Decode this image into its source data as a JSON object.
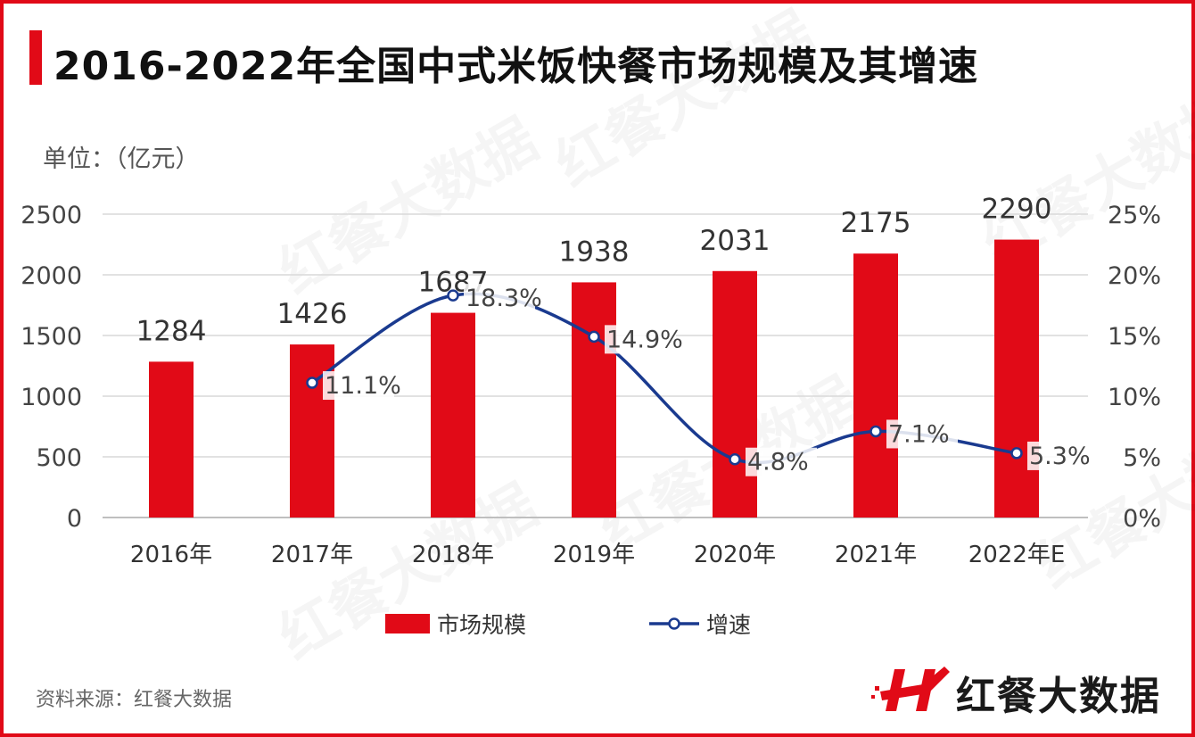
{
  "title": "2016-2022年全国中式米饭快餐市场规模及其增速",
  "unit_label": "单位：（亿元）",
  "source": "资料来源：红餐大数据",
  "logo_text": "红餐大数据",
  "watermark_text": "红餐大数据",
  "colors": {
    "bar": "#e10a17",
    "line": "#1a3a8f",
    "accent": "#e10a17"
  },
  "chart_data": {
    "type": "bar+line",
    "categories": [
      "2016年",
      "2017年",
      "2018年",
      "2019年",
      "2020年",
      "2021年",
      "2022年E"
    ],
    "series": [
      {
        "name": "市场规模",
        "type": "bar",
        "axis": "left",
        "values": [
          1284,
          1426,
          1687,
          1938,
          2031,
          2175,
          2290
        ],
        "labels": [
          "1284",
          "1426",
          "1687",
          "1938",
          "2031",
          "2175",
          "2290"
        ]
      },
      {
        "name": "增速",
        "type": "line",
        "axis": "right",
        "smooth": true,
        "values": [
          null,
          11.1,
          18.3,
          14.9,
          4.8,
          7.1,
          5.3
        ],
        "labels": [
          "",
          "11.1%",
          "18.3%",
          "14.9%",
          "4.8%",
          "7.1%",
          "5.3%"
        ]
      }
    ],
    "y_left": {
      "range": [
        0,
        2500
      ],
      "ticks": [
        "0",
        "500",
        "1000",
        "1500",
        "2000",
        "2500"
      ]
    },
    "y_right": {
      "range": [
        0,
        25
      ],
      "ticks": [
        "0%",
        "5%",
        "10%",
        "15%",
        "20%",
        "25%"
      ]
    },
    "grid": true,
    "legend": "bottom-center"
  }
}
